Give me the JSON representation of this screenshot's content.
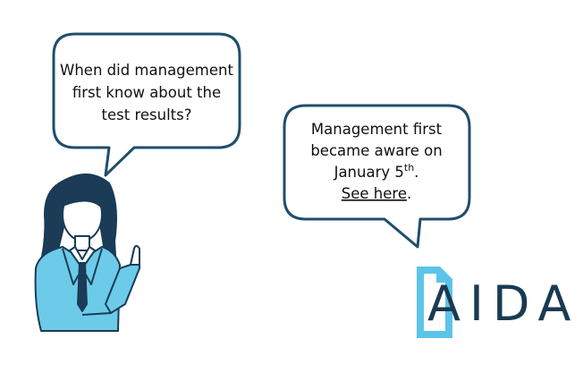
{
  "left_bubble": {
    "lines": [
      "When did management",
      "first know about the",
      "test results?"
    ]
  },
  "right_bubble": {
    "lines": [
      "Management first",
      "became aware on"
    ],
    "date_text": "January 5",
    "date_suffix": "th",
    "date_end": ".",
    "link_text": "See here",
    "link_end": "."
  },
  "logo": "AIDA"
}
